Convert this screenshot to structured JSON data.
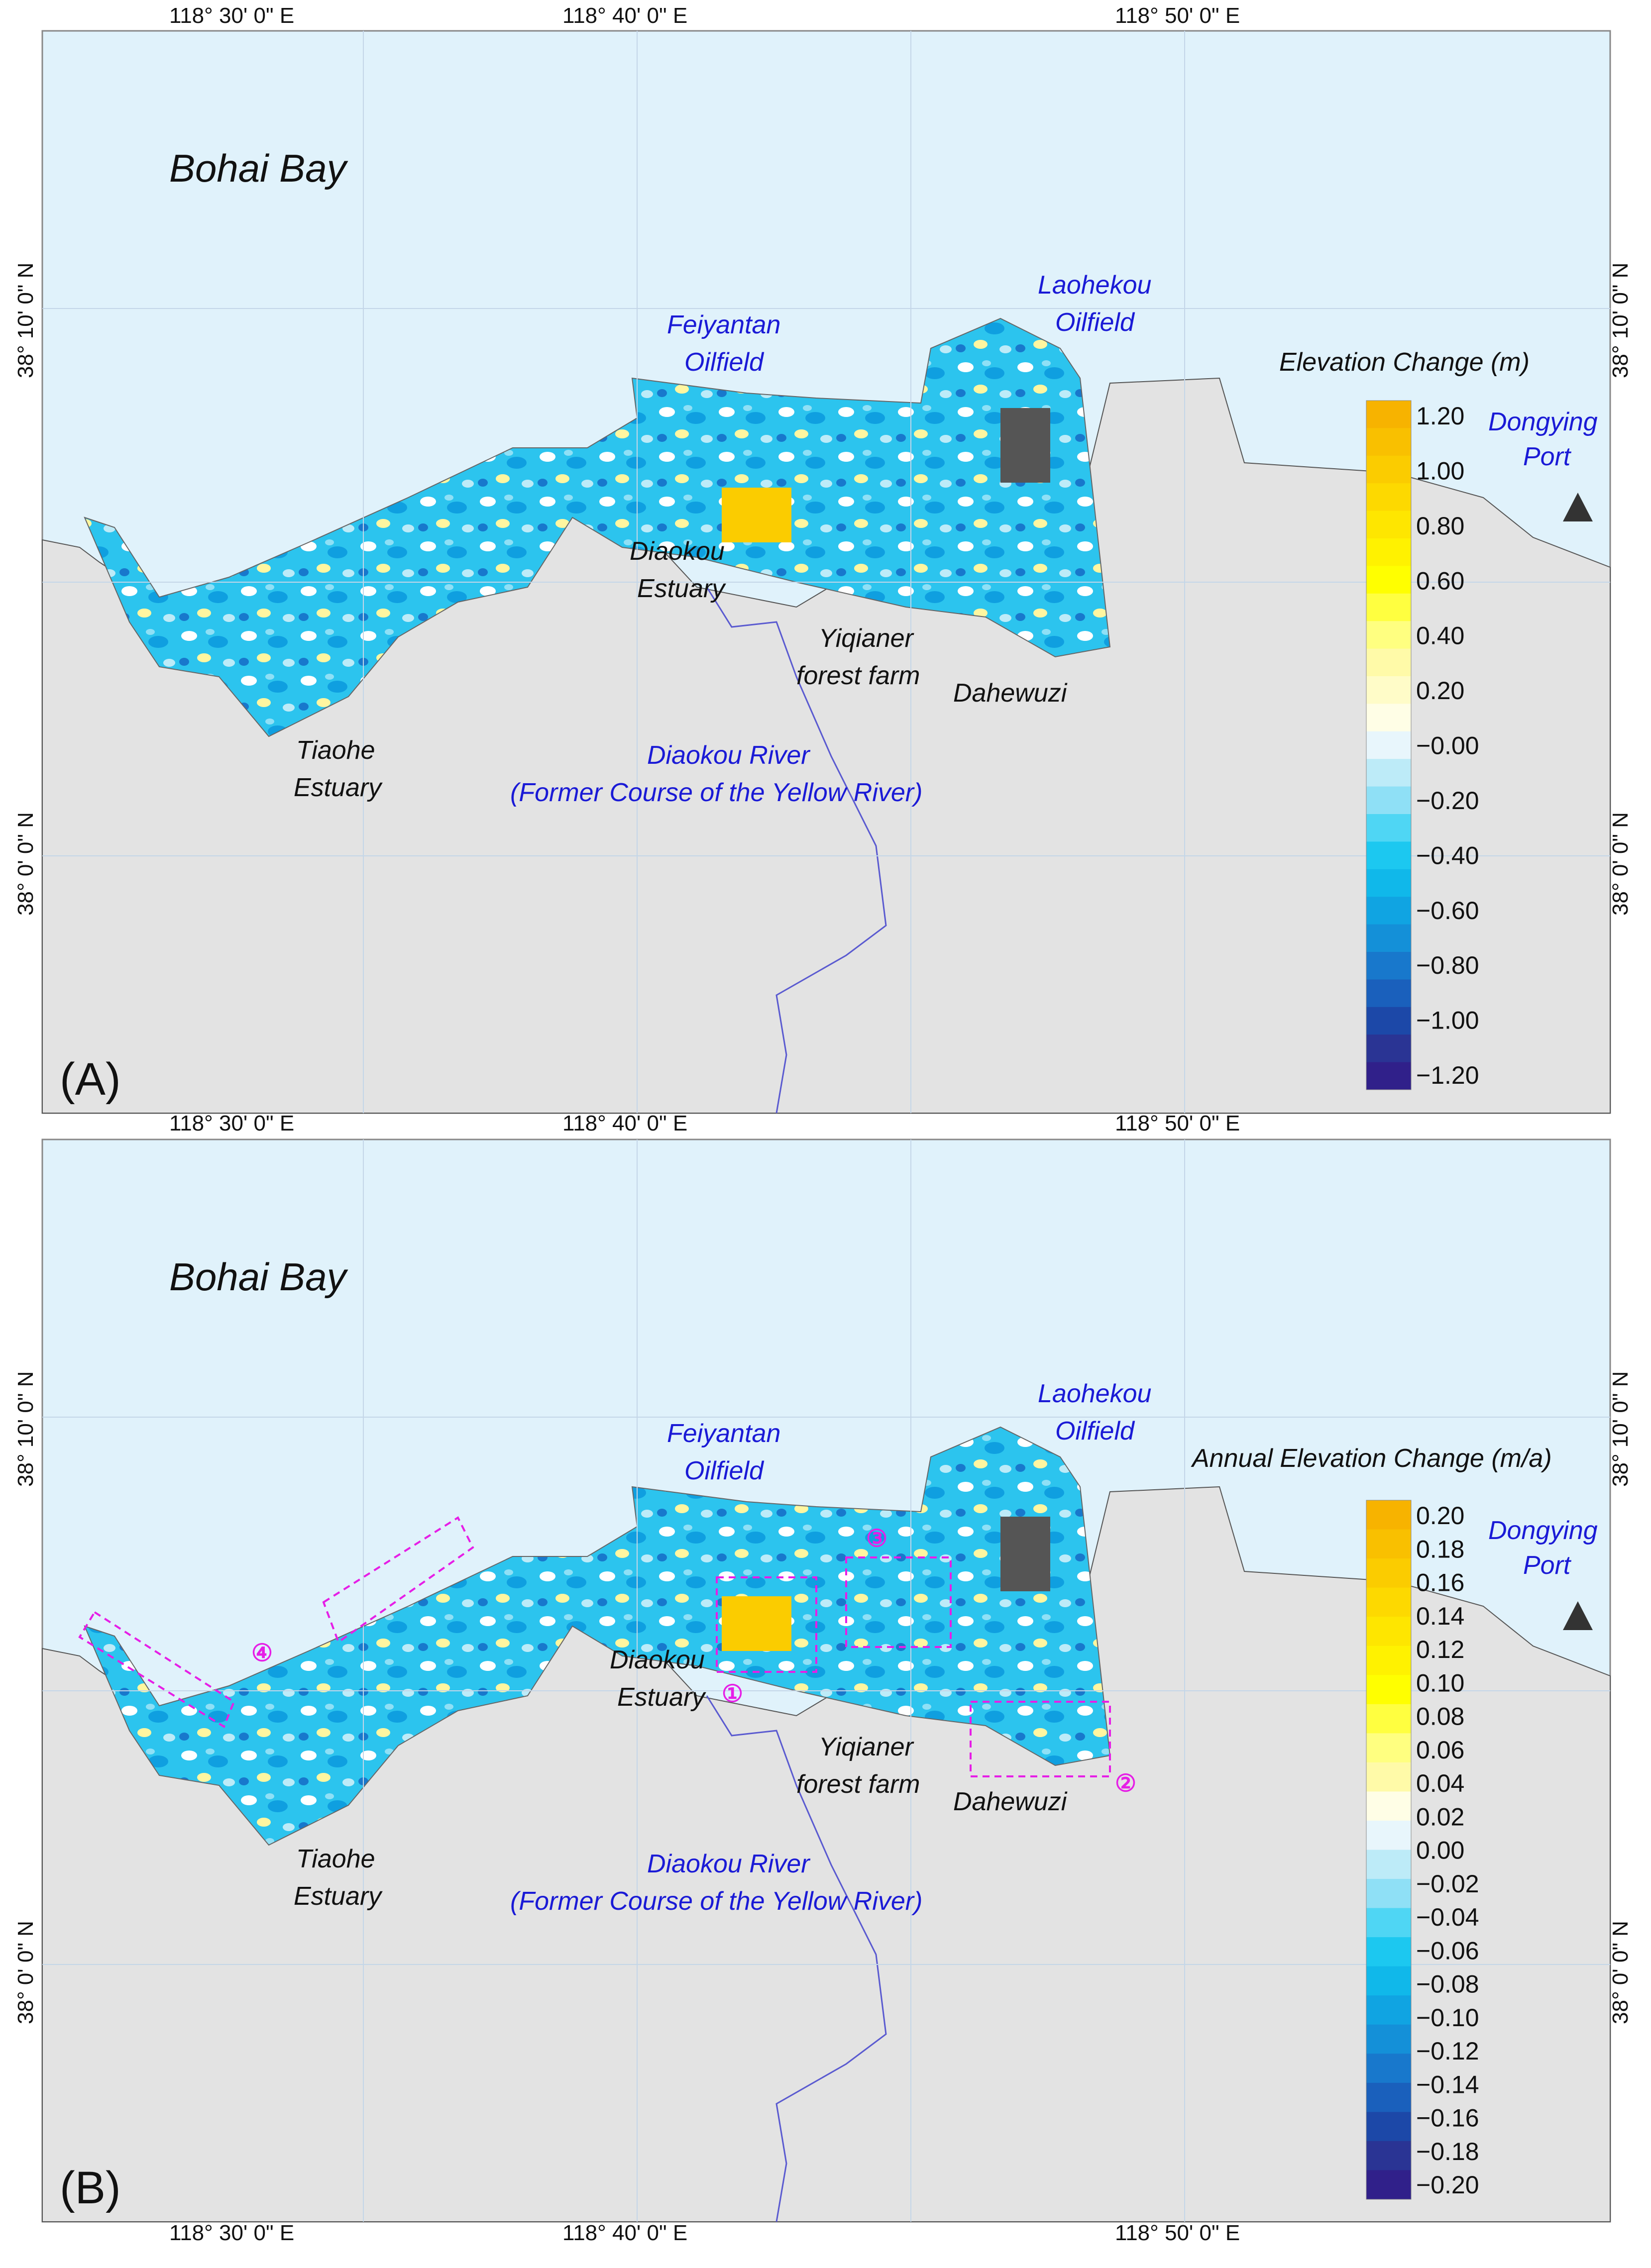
{
  "colors": {
    "sea": "#e0f2fb",
    "land": "#e3e3e3",
    "gridline": "#c4d6e8",
    "river": "#5a5ad0",
    "infrastructure": "#444444",
    "zone_box": "#e61ee6",
    "placename_blue": "#1a1ad6"
  },
  "coordinates": {
    "lon_labels": [
      "118° 30' 0\" E",
      "118° 40' 0\" E",
      "118° 50' 0\" E"
    ],
    "lat_labels": [
      "38° 10' 0\" N",
      "38° 0' 0\" N"
    ]
  },
  "places": {
    "bay": "Bohai Bay",
    "feiyantan_1": "Feiyantan",
    "feiyantan_2": "Oilfield",
    "laohekou_1": "Laohekou",
    "laohekou_2": "Oilfield",
    "dongying_1": "Dongying",
    "dongying_2": "Port",
    "diaokou_est_1": "Diaokou",
    "diaokou_est_2": "Estuary",
    "yiqianer_1": "Yiqianer",
    "yiqianer_2": "forest farm",
    "dahewuzi": "Dahewuzi",
    "tiaohe_1": "Tiaohe",
    "tiaohe_2": "Estuary",
    "river_1": "Diaokou River",
    "river_2": "(Former Course of the Yellow River)"
  },
  "port_marker": "triangle",
  "panels": [
    {
      "letter": "(A)",
      "legend_title": "Elevation Change (m)",
      "legend_ticks": [
        "1.20",
        "1.00",
        "0.80",
        "0.60",
        "0.40",
        "0.20",
        "−0.00",
        "−0.20",
        "−0.40",
        "−0.60",
        "−0.80",
        "−1.00",
        "−1.20"
      ],
      "legend_colors": [
        "#f7b300",
        "#f9c000",
        "#fbcc00",
        "#fdd900",
        "#fee600",
        "#fff200",
        "#ffff00",
        "#ffff40",
        "#ffff80",
        "#fffaa8",
        "#fffcc8",
        "#fffee6",
        "#e8f6fc",
        "#bdebf8",
        "#8fe0f6",
        "#4fd6f4",
        "#1cc8f0",
        "#10b8ea",
        "#10a4e2",
        "#1490d8",
        "#1878cc",
        "#1a60bc",
        "#1c48a8",
        "#2a3494",
        "#30208a"
      ],
      "zones": []
    },
    {
      "letter": "(B)",
      "legend_title": "Annual Elevation Change (m/a)",
      "legend_ticks": [
        "0.20",
        "0.18",
        "0.16",
        "0.14",
        "0.12",
        "0.10",
        "0.08",
        "0.06",
        "0.04",
        "0.02",
        "0.00",
        "−0.02",
        "−0.04",
        "−0.06",
        "−0.08",
        "−0.10",
        "−0.12",
        "−0.14",
        "−0.16",
        "−0.18",
        "−0.20"
      ],
      "legend_colors": [
        "#f7b300",
        "#f9c000",
        "#fbcc00",
        "#fdd900",
        "#fee600",
        "#fff200",
        "#ffff00",
        "#ffff40",
        "#ffff80",
        "#fffaa8",
        "#fffee6",
        "#e8f6fc",
        "#bdebf8",
        "#8fe0f6",
        "#4fd6f4",
        "#1cc8f0",
        "#10b8ea",
        "#10a4e2",
        "#1490d8",
        "#1878cc",
        "#1a60bc",
        "#1c48a8",
        "#2a3494",
        "#30208a"
      ],
      "zones": [
        "①",
        "②",
        "③",
        "④"
      ]
    }
  ]
}
